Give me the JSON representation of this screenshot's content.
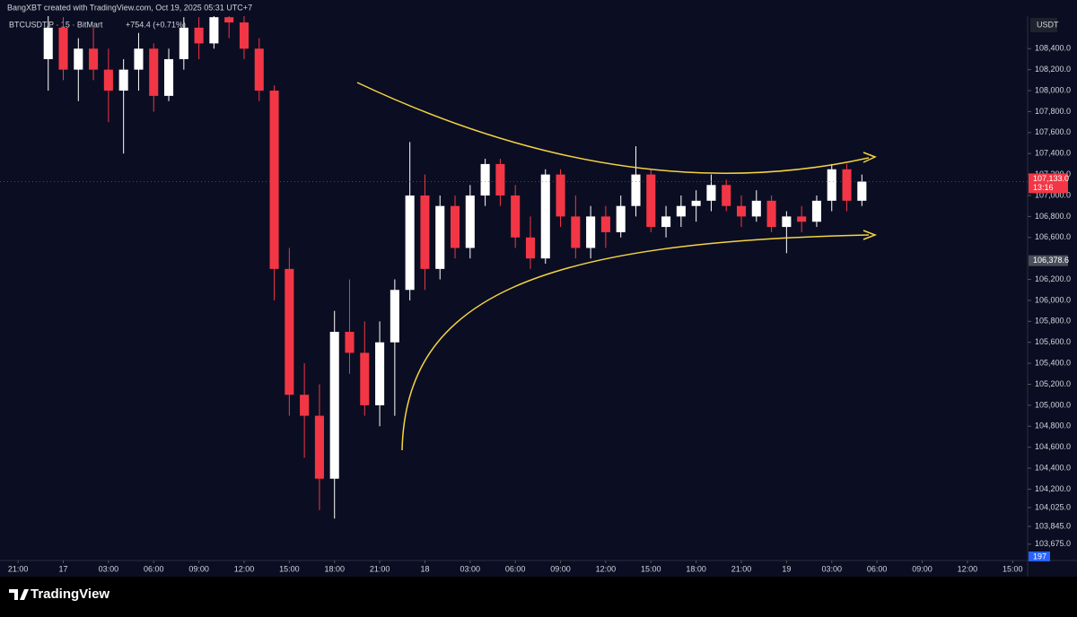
{
  "chart_data": {
    "type": "candlestick",
    "header": "BangXBT created with TradingView.com, Oct 19, 2025 05:31 UTC+7",
    "symbol": "BTCUSDT.P · 15 · BitMart",
    "change": "+754.4 (+0.71%)",
    "currency": "USDT",
    "brand": "TradingView",
    "countdown": "13:16",
    "volume_ma": {
      "value": 197,
      "label": "197"
    },
    "last_price": {
      "value": 107133,
      "label": "107,133.0"
    },
    "marker_price": {
      "value": 106378.6,
      "label": "106,378.6"
    },
    "up_color": "#ffffff",
    "down_color": "#f23645",
    "x": [
      2,
      3,
      4,
      5,
      6,
      7,
      8,
      9,
      10,
      11,
      12,
      13,
      14,
      15,
      16,
      17,
      18,
      19,
      20,
      21,
      22,
      23,
      24,
      25,
      26,
      27,
      28,
      29,
      30,
      31,
      32,
      33,
      34,
      35,
      36,
      37,
      38,
      39,
      40,
      41,
      42,
      43,
      44,
      45,
      46,
      47,
      48,
      49,
      50,
      51,
      52,
      53,
      54,
      55,
      56
    ],
    "open": [
      108300,
      108600,
      108200,
      108400,
      108200,
      108000,
      108200,
      108400,
      107950,
      108300,
      108600,
      108450,
      108700,
      108650,
      108400,
      108000,
      106300,
      105100,
      104900,
      104300,
      105700,
      105500,
      105000,
      105600,
      106100,
      107000,
      106300,
      106900,
      106500,
      107000,
      107300,
      107000,
      106600,
      106400,
      107200,
      106800,
      106500,
      106800,
      106650,
      106900,
      107200,
      106700,
      106800,
      106900,
      106950,
      107100,
      106900,
      106800,
      106950,
      106700,
      106800,
      106750,
      106950,
      107250,
      106950
    ],
    "high": [
      108750,
      108700,
      108500,
      108600,
      108400,
      108300,
      108550,
      108450,
      108400,
      108700,
      108700,
      108710,
      108710,
      108710,
      108500,
      108050,
      106500,
      105400,
      105200,
      105900,
      106200,
      105800,
      105800,
      106200,
      107510,
      107200,
      107000,
      107000,
      107100,
      107350,
      107350,
      107100,
      106800,
      107250,
      107250,
      107000,
      106900,
      106900,
      107000,
      107470,
      107250,
      106900,
      107000,
      107050,
      107200,
      107150,
      107000,
      107050,
      107000,
      106850,
      106900,
      107000,
      107300,
      107300,
      107200
    ],
    "low": [
      108000,
      108100,
      107900,
      108100,
      107700,
      107400,
      108000,
      107800,
      107900,
      108200,
      108300,
      108400,
      108500,
      108300,
      107900,
      106000,
      104900,
      104500,
      104000,
      103920,
      105300,
      104900,
      104800,
      104900,
      106000,
      106100,
      106200,
      106400,
      106400,
      106900,
      106900,
      106500,
      106300,
      106350,
      106700,
      106400,
      106400,
      106500,
      106600,
      106800,
      106650,
      106600,
      106700,
      106750,
      106850,
      106850,
      106700,
      106750,
      106650,
      106450,
      106650,
      106700,
      106850,
      106850,
      106900
    ],
    "close": [
      108600,
      108200,
      108400,
      108200,
      108000,
      108200,
      108400,
      107950,
      108300,
      108600,
      108450,
      108700,
      108650,
      108400,
      108000,
      106300,
      105100,
      104900,
      104300,
      105700,
      105500,
      105000,
      105600,
      106100,
      107000,
      106300,
      106900,
      106500,
      107000,
      107300,
      107000,
      106600,
      106400,
      107200,
      106800,
      106500,
      106800,
      106650,
      106900,
      107200,
      106700,
      106800,
      106900,
      106950,
      107100,
      106900,
      106800,
      106950,
      106700,
      106800,
      106750,
      106950,
      107250,
      106950,
      107133
    ],
    "xlim": [
      -1.2,
      67
    ],
    "xticks": [
      {
        "value": 0,
        "label": "21:00"
      },
      {
        "value": 3,
        "label": "17"
      },
      {
        "value": 6,
        "label": "03:00"
      },
      {
        "value": 9,
        "label": "06:00"
      },
      {
        "value": 12,
        "label": "09:00"
      },
      {
        "value": 15,
        "label": "12:00"
      },
      {
        "value": 18,
        "label": "15:00"
      },
      {
        "value": 21,
        "label": "18:00"
      },
      {
        "value": 24,
        "label": "21:00"
      },
      {
        "value": 27,
        "label": "18"
      },
      {
        "value": 30,
        "label": "03:00"
      },
      {
        "value": 33,
        "label": "06:00"
      },
      {
        "value": 36,
        "label": "09:00"
      },
      {
        "value": 39,
        "label": "12:00"
      },
      {
        "value": 42,
        "label": "15:00"
      },
      {
        "value": 45,
        "label": "18:00"
      },
      {
        "value": 48,
        "label": "21:00"
      },
      {
        "value": 51,
        "label": "19"
      },
      {
        "value": 54,
        "label": "03:00"
      },
      {
        "value": 57,
        "label": "06:00"
      },
      {
        "value": 60,
        "label": "09:00"
      },
      {
        "value": 63,
        "label": "12:00"
      },
      {
        "value": 66,
        "label": "15:00"
      }
    ],
    "ylim": [
      103520,
      108710
    ],
    "yticks": [
      {
        "value": 108400,
        "label": "108,400.0"
      },
      {
        "value": 108200,
        "label": "108,200.0"
      },
      {
        "value": 108000,
        "label": "108,000.0"
      },
      {
        "value": 107800,
        "label": "107,800.0"
      },
      {
        "value": 107600,
        "label": "107,600.0"
      },
      {
        "value": 107400,
        "label": "107,400.0"
      },
      {
        "value": 107200,
        "label": "107,200.0"
      },
      {
        "value": 107000,
        "label": "107,000.0"
      },
      {
        "value": 106800,
        "label": "106,800.0"
      },
      {
        "value": 106600,
        "label": "106,600.0"
      },
      {
        "value": 106200,
        "label": "106,200.0"
      },
      {
        "value": 106000,
        "label": "106,000.0"
      },
      {
        "value": 105800,
        "label": "105,800.0"
      },
      {
        "value": 105600,
        "label": "105,600.0"
      },
      {
        "value": 105400,
        "label": "105,400.0"
      },
      {
        "value": 105200,
        "label": "105,200.0"
      },
      {
        "value": 105000,
        "label": "105,000.0"
      },
      {
        "value": 104800,
        "label": "104,800.0"
      },
      {
        "value": 104600,
        "label": "104,600.0"
      },
      {
        "value": 104400,
        "label": "104,400.0"
      },
      {
        "value": 104200,
        "label": "104,200.0"
      },
      {
        "value": 104025,
        "label": "104,025.0"
      },
      {
        "value": 103845,
        "label": "103,845.0"
      },
      {
        "value": 103675,
        "label": "103,675.0"
      }
    ]
  }
}
